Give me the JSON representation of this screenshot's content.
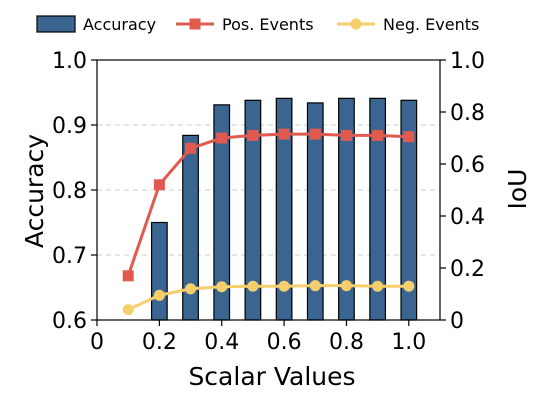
{
  "chart_data": {
    "type": "bar+line",
    "legend": {
      "placement": "top",
      "entries": [
        "Accuracy",
        "Pos. Events",
        "Neg. Events"
      ]
    },
    "colors": {
      "bars": "#3a6591",
      "bar_edge": "#000000",
      "pos_line": "#e05a50",
      "neg_line": "#f5cf6b",
      "grid": "#cccccc"
    },
    "x": {
      "label": "Scalar Values",
      "lim": [
        0,
        1.1
      ],
      "ticks": [
        0,
        0.2,
        0.4,
        0.6,
        0.8,
        1.0
      ],
      "tick_labels": [
        "0",
        "0.2",
        "0.4",
        "0.6",
        "0.8",
        "1.0"
      ]
    },
    "y_left": {
      "label": "Accuracy",
      "lim": [
        0.6,
        1.0
      ],
      "ticks": [
        0.6,
        0.7,
        0.8,
        0.9,
        1.0
      ],
      "tick_labels": [
        "0.6",
        "0.7",
        "0.8",
        "0.9",
        "1.0"
      ],
      "grid": true
    },
    "y_right": {
      "label": "IoU",
      "lim": [
        0,
        1.0
      ],
      "ticks": [
        0,
        0.2,
        0.4,
        0.6,
        0.8,
        1.0
      ],
      "tick_labels": [
        "0",
        "0.2",
        "0.4",
        "0.6",
        "0.8",
        "1.0"
      ]
    },
    "accuracy_bars": {
      "name": "Accuracy",
      "axis": "left",
      "x": [
        0.2,
        0.3,
        0.4,
        0.5,
        0.6,
        0.7,
        0.8,
        0.9,
        1.0
      ],
      "values": [
        0.75,
        0.884,
        0.931,
        0.938,
        0.941,
        0.934,
        0.941,
        0.941,
        0.938
      ]
    },
    "series": [
      {
        "name": "Pos. Events",
        "axis": "right",
        "marker": "square",
        "x": [
          0.1,
          0.2,
          0.3,
          0.4,
          0.5,
          0.6,
          0.7,
          0.8,
          0.9,
          1.0
        ],
        "values": [
          0.17,
          0.52,
          0.66,
          0.7,
          0.71,
          0.715,
          0.715,
          0.71,
          0.71,
          0.705
        ]
      },
      {
        "name": "Neg. Events",
        "axis": "right",
        "marker": "circle",
        "x": [
          0.1,
          0.2,
          0.3,
          0.4,
          0.5,
          0.6,
          0.7,
          0.8,
          0.9,
          1.0
        ],
        "values": [
          0.04,
          0.095,
          0.12,
          0.128,
          0.13,
          0.13,
          0.132,
          0.132,
          0.13,
          0.13
        ]
      }
    ]
  }
}
